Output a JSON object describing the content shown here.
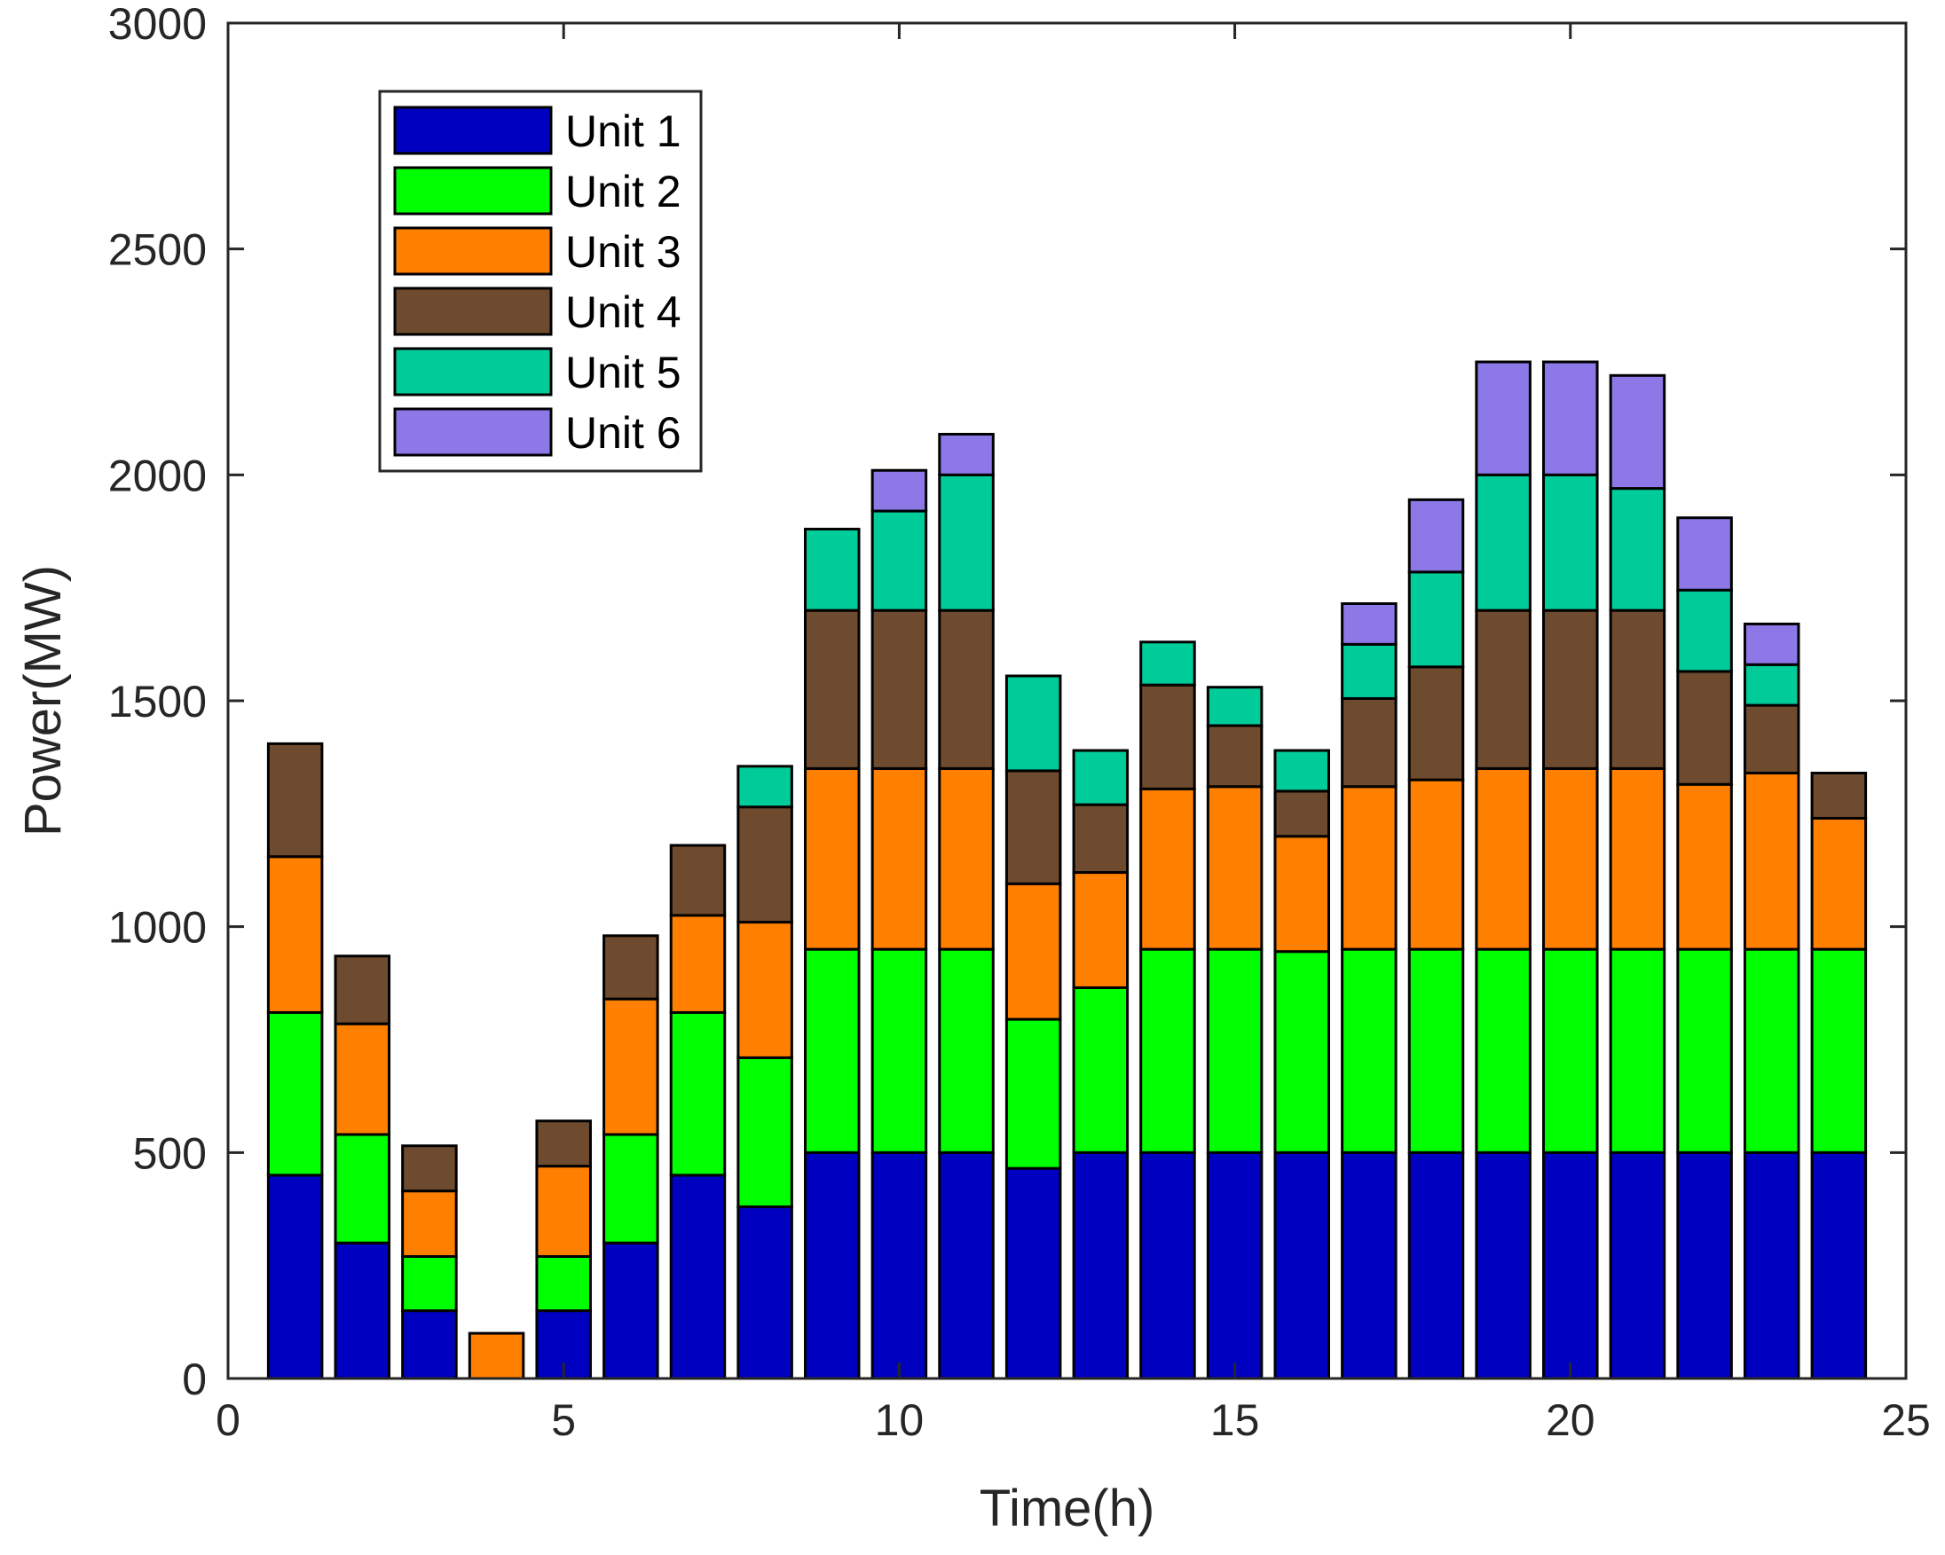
{
  "chart_data": {
    "type": "bar",
    "stacked": true,
    "title": "",
    "xlabel": "Time(h)",
    "ylabel": "Power(MW)",
    "xlim": [
      0,
      25
    ],
    "ylim": [
      0,
      3000
    ],
    "xticks": [
      0,
      5,
      10,
      15,
      20,
      25
    ],
    "yticks": [
      0,
      500,
      1000,
      1500,
      2000,
      2500,
      3000
    ],
    "grid": false,
    "legend_position": "top-left",
    "x": [
      1,
      2,
      3,
      4,
      5,
      6,
      7,
      8,
      9,
      10,
      11,
      12,
      13,
      14,
      15,
      16,
      17,
      18,
      19,
      20,
      21,
      22,
      23,
      24
    ],
    "series": [
      {
        "name": "Unit 1",
        "color": "#0000C0",
        "values": [
          450,
          300,
          150,
          0,
          150,
          300,
          450,
          380,
          500,
          500,
          500,
          465,
          500,
          500,
          500,
          500,
          500,
          500,
          500,
          500,
          500,
          500,
          500,
          500
        ]
      },
      {
        "name": "Unit 2",
        "color": "#00FF00",
        "values": [
          360,
          240,
          120,
          0,
          120,
          240,
          360,
          330,
          450,
          450,
          450,
          330,
          365,
          450,
          450,
          445,
          450,
          450,
          450,
          450,
          450,
          450,
          450,
          450
        ]
      },
      {
        "name": "Unit 3",
        "color": "#FF8000",
        "values": [
          345,
          245,
          145,
          100,
          200,
          300,
          215,
          300,
          400,
          400,
          400,
          300,
          255,
          355,
          360,
          255,
          360,
          375,
          400,
          400,
          400,
          365,
          390,
          290
        ]
      },
      {
        "name": "Unit 4",
        "color": "#6E4B2E",
        "values": [
          250,
          150,
          100,
          0,
          100,
          140,
          155,
          255,
          350,
          350,
          350,
          250,
          150,
          230,
          135,
          100,
          195,
          250,
          350,
          350,
          350,
          250,
          150,
          100
        ]
      },
      {
        "name": "Unit 5",
        "color": "#00CC99",
        "values": [
          0,
          0,
          0,
          0,
          0,
          0,
          0,
          90,
          180,
          220,
          300,
          210,
          120,
          95,
          85,
          90,
          120,
          210,
          300,
          300,
          270,
          180,
          90,
          0
        ]
      },
      {
        "name": "Unit 6",
        "color": "#8C78E6",
        "values": [
          0,
          0,
          0,
          0,
          0,
          0,
          0,
          0,
          0,
          90,
          90,
          0,
          0,
          0,
          0,
          0,
          90,
          160,
          250,
          250,
          250,
          160,
          90,
          0
        ]
      }
    ]
  }
}
